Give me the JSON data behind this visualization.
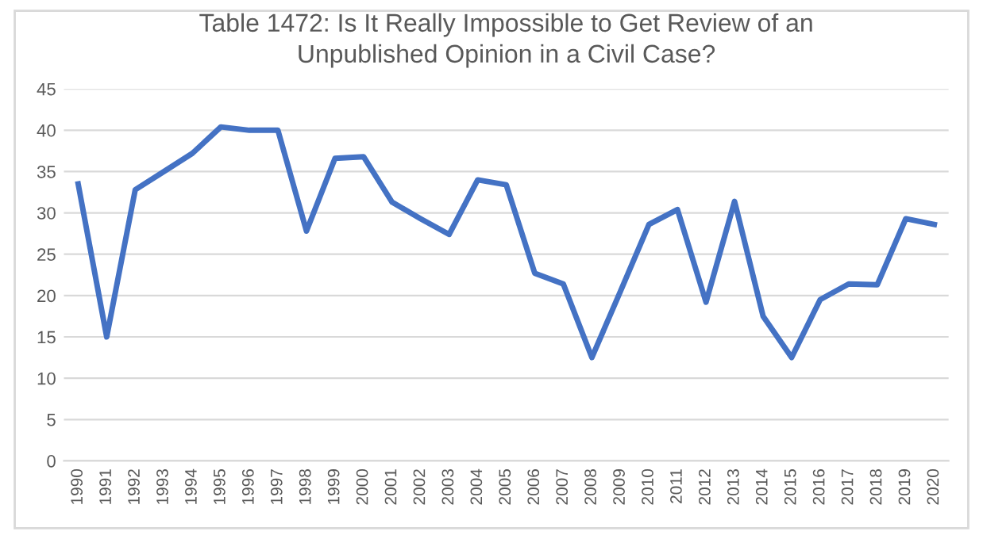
{
  "chart_data": {
    "type": "line",
    "title": "Table 1472: Is It Really Impossible to Get Review of an\nUnpublished Opinion in a Civil Case?",
    "categories": [
      "1990",
      "1991",
      "1992",
      "1993",
      "1994",
      "1995",
      "1996",
      "1997",
      "1998",
      "1999",
      "2000",
      "2001",
      "2002",
      "2003",
      "2004",
      "2005",
      "2006",
      "2007",
      "2008",
      "2009",
      "2010",
      "2011",
      "2012",
      "2013",
      "2014",
      "2015",
      "2016",
      "2017",
      "2018",
      "2019",
      "2020"
    ],
    "series": [
      {
        "color": "#4472c4",
        "values": [
          33.5,
          15,
          32.8,
          35,
          37.2,
          40.4,
          40,
          40,
          27.8,
          36.6,
          36.8,
          31.3,
          29.3,
          27.4,
          34,
          33.4,
          22.7,
          21.4,
          12.5,
          20.5,
          28.6,
          30.4,
          19.2,
          31.4,
          17.5,
          12.5,
          19.5,
          21.4,
          21.3,
          29.3,
          28.6
        ]
      }
    ],
    "ylim": [
      0,
      45
    ],
    "yticks": [
      0,
      5,
      10,
      15,
      20,
      25,
      30,
      35,
      40,
      45
    ],
    "grid": "y",
    "marker": "none",
    "line_style": "solid",
    "legend": false
  }
}
